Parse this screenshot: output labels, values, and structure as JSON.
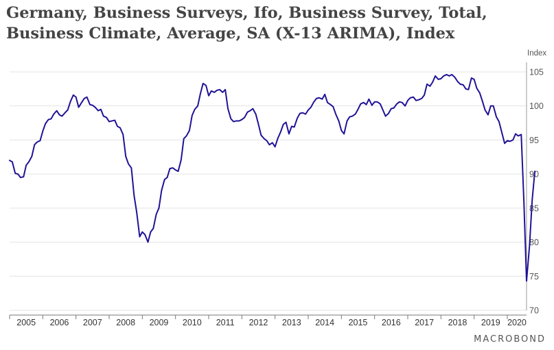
{
  "title_lines": [
    "Germany, Business Surveys, Ifo, Business Survey, Total,",
    "Business Climate, Average, SA (X-13 ARIMA), Index"
  ],
  "brand": "MACROBOND",
  "colors": {
    "line": "#1f1296",
    "grid": "#e3e3e3",
    "axis": "#555555",
    "title": "#444444"
  },
  "chart_data": {
    "type": "line",
    "title": "Germany, Business Surveys, Ifo, Business Survey, Total, Business Climate, Average, SA (X-13 ARIMA), Index",
    "ylabel": "Index",
    "ylim": [
      70,
      106
    ],
    "yticks": [
      70,
      75,
      80,
      85,
      90,
      95,
      100,
      105
    ],
    "xlim": [
      2005.0,
      2020.58
    ],
    "xtick_labels": [
      "2005",
      "2006",
      "2007",
      "2008",
      "2009",
      "2010",
      "2011",
      "2012",
      "2013",
      "2014",
      "2015",
      "2016",
      "2017",
      "2018",
      "2019",
      "2020"
    ],
    "grid": "horizontal",
    "series": [
      {
        "points": [
          [
            2005.0,
            92.0
          ],
          [
            2005.08,
            91.8
          ],
          [
            2005.17,
            90.1
          ],
          [
            2005.25,
            90.0
          ],
          [
            2005.33,
            89.5
          ],
          [
            2005.42,
            89.6
          ],
          [
            2005.5,
            91.3
          ],
          [
            2005.58,
            91.8
          ],
          [
            2005.67,
            92.6
          ],
          [
            2005.75,
            94.3
          ],
          [
            2005.83,
            94.7
          ],
          [
            2005.92,
            94.9
          ],
          [
            2006.0,
            96.3
          ],
          [
            2006.08,
            97.4
          ],
          [
            2006.17,
            98.0
          ],
          [
            2006.25,
            98.1
          ],
          [
            2006.33,
            98.8
          ],
          [
            2006.42,
            99.3
          ],
          [
            2006.5,
            98.7
          ],
          [
            2006.58,
            98.5
          ],
          [
            2006.67,
            99.0
          ],
          [
            2006.75,
            99.4
          ],
          [
            2006.83,
            100.6
          ],
          [
            2006.92,
            101.6
          ],
          [
            2007.0,
            101.3
          ],
          [
            2007.08,
            99.8
          ],
          [
            2007.17,
            100.5
          ],
          [
            2007.25,
            101.1
          ],
          [
            2007.33,
            101.3
          ],
          [
            2007.42,
            100.2
          ],
          [
            2007.5,
            100.1
          ],
          [
            2007.58,
            99.8
          ],
          [
            2007.67,
            99.3
          ],
          [
            2007.75,
            99.5
          ],
          [
            2007.83,
            98.5
          ],
          [
            2007.92,
            98.3
          ],
          [
            2008.0,
            97.7
          ],
          [
            2008.08,
            97.8
          ],
          [
            2008.17,
            97.9
          ],
          [
            2008.25,
            97.0
          ],
          [
            2008.33,
            96.8
          ],
          [
            2008.42,
            95.8
          ],
          [
            2008.5,
            92.6
          ],
          [
            2008.58,
            91.5
          ],
          [
            2008.67,
            90.9
          ],
          [
            2008.75,
            86.9
          ],
          [
            2008.83,
            84.4
          ],
          [
            2008.92,
            80.8
          ],
          [
            2009.0,
            81.5
          ],
          [
            2009.08,
            81.1
          ],
          [
            2009.17,
            80.0
          ],
          [
            2009.25,
            81.5
          ],
          [
            2009.33,
            82.0
          ],
          [
            2009.42,
            84.1
          ],
          [
            2009.5,
            85.0
          ],
          [
            2009.58,
            87.6
          ],
          [
            2009.67,
            89.2
          ],
          [
            2009.75,
            89.5
          ],
          [
            2009.83,
            90.8
          ],
          [
            2009.92,
            90.9
          ],
          [
            2010.0,
            90.6
          ],
          [
            2010.08,
            90.4
          ],
          [
            2010.17,
            92.1
          ],
          [
            2010.25,
            95.2
          ],
          [
            2010.33,
            95.6
          ],
          [
            2010.42,
            96.4
          ],
          [
            2010.5,
            98.6
          ],
          [
            2010.58,
            99.5
          ],
          [
            2010.67,
            100.0
          ],
          [
            2010.75,
            101.8
          ],
          [
            2010.83,
            103.3
          ],
          [
            2010.92,
            103.0
          ],
          [
            2011.0,
            101.5
          ],
          [
            2011.08,
            102.2
          ],
          [
            2011.17,
            102.0
          ],
          [
            2011.25,
            102.3
          ],
          [
            2011.33,
            102.4
          ],
          [
            2011.42,
            102.0
          ],
          [
            2011.5,
            102.4
          ],
          [
            2011.58,
            99.6
          ],
          [
            2011.67,
            98.1
          ],
          [
            2011.75,
            97.7
          ],
          [
            2011.83,
            97.8
          ],
          [
            2011.92,
            97.8
          ],
          [
            2012.0,
            98.0
          ],
          [
            2012.08,
            98.3
          ],
          [
            2012.17,
            99.1
          ],
          [
            2012.25,
            99.3
          ],
          [
            2012.33,
            99.6
          ],
          [
            2012.42,
            98.8
          ],
          [
            2012.5,
            97.3
          ],
          [
            2012.58,
            95.7
          ],
          [
            2012.67,
            95.2
          ],
          [
            2012.75,
            94.9
          ],
          [
            2012.83,
            94.3
          ],
          [
            2012.92,
            94.6
          ],
          [
            2013.0,
            94.0
          ],
          [
            2013.08,
            95.2
          ],
          [
            2013.17,
            96.2
          ],
          [
            2013.25,
            97.3
          ],
          [
            2013.33,
            97.6
          ],
          [
            2013.42,
            95.9
          ],
          [
            2013.5,
            97.0
          ],
          [
            2013.58,
            96.9
          ],
          [
            2013.67,
            98.2
          ],
          [
            2013.75,
            98.9
          ],
          [
            2013.83,
            99.0
          ],
          [
            2013.92,
            98.8
          ],
          [
            2014.0,
            99.4
          ],
          [
            2014.08,
            99.8
          ],
          [
            2014.17,
            100.6
          ],
          [
            2014.25,
            101.1
          ],
          [
            2014.33,
            101.2
          ],
          [
            2014.42,
            101.0
          ],
          [
            2014.5,
            101.7
          ],
          [
            2014.58,
            100.5
          ],
          [
            2014.67,
            100.2
          ],
          [
            2014.75,
            99.9
          ],
          [
            2014.83,
            98.8
          ],
          [
            2014.92,
            97.8
          ],
          [
            2015.0,
            96.4
          ],
          [
            2015.08,
            95.9
          ],
          [
            2015.17,
            97.8
          ],
          [
            2015.25,
            98.4
          ],
          [
            2015.33,
            98.5
          ],
          [
            2015.42,
            98.8
          ],
          [
            2015.5,
            99.5
          ],
          [
            2015.58,
            100.3
          ],
          [
            2015.67,
            100.5
          ],
          [
            2015.75,
            100.2
          ],
          [
            2015.83,
            101.0
          ],
          [
            2015.92,
            100.1
          ],
          [
            2016.0,
            100.6
          ],
          [
            2016.08,
            100.6
          ],
          [
            2016.17,
            100.3
          ],
          [
            2016.25,
            99.4
          ],
          [
            2016.33,
            98.5
          ],
          [
            2016.42,
            98.9
          ],
          [
            2016.5,
            99.6
          ],
          [
            2016.58,
            99.7
          ],
          [
            2016.67,
            100.3
          ],
          [
            2016.75,
            100.6
          ],
          [
            2016.83,
            100.5
          ],
          [
            2016.92,
            100.0
          ],
          [
            2017.0,
            100.8
          ],
          [
            2017.08,
            101.2
          ],
          [
            2017.17,
            101.3
          ],
          [
            2017.25,
            100.8
          ],
          [
            2017.33,
            100.9
          ],
          [
            2017.42,
            101.1
          ],
          [
            2017.5,
            101.6
          ],
          [
            2017.58,
            103.2
          ],
          [
            2017.67,
            102.9
          ],
          [
            2017.75,
            103.5
          ],
          [
            2017.83,
            104.4
          ],
          [
            2017.92,
            103.9
          ],
          [
            2018.0,
            104.0
          ],
          [
            2018.08,
            104.4
          ],
          [
            2018.17,
            104.6
          ],
          [
            2018.25,
            104.4
          ],
          [
            2018.33,
            104.6
          ],
          [
            2018.42,
            104.2
          ],
          [
            2018.5,
            103.6
          ],
          [
            2018.58,
            103.2
          ],
          [
            2018.67,
            103.1
          ],
          [
            2018.75,
            102.5
          ],
          [
            2018.83,
            102.4
          ],
          [
            2018.92,
            104.1
          ],
          [
            2019.0,
            103.9
          ],
          [
            2019.08,
            102.6
          ],
          [
            2019.17,
            101.9
          ],
          [
            2019.25,
            100.7
          ],
          [
            2019.33,
            99.4
          ],
          [
            2019.42,
            98.7
          ],
          [
            2019.5,
            100.0
          ],
          [
            2019.58,
            100.0
          ],
          [
            2019.67,
            98.4
          ],
          [
            2019.75,
            97.7
          ],
          [
            2019.83,
            96.2
          ],
          [
            2019.92,
            94.5
          ],
          [
            2020.0,
            94.9
          ],
          [
            2020.08,
            94.8
          ],
          [
            2020.17,
            95.0
          ],
          [
            2020.25,
            95.9
          ],
          [
            2020.33,
            95.6
          ],
          [
            2020.42,
            95.8
          ],
          [
            2020.5,
            86.0
          ],
          [
            2020.58,
            74.3
          ],
          [
            2020.67,
            79.5
          ],
          [
            2020.75,
            86.2
          ],
          [
            2020.83,
            90.4
          ]
        ]
      }
    ]
  }
}
